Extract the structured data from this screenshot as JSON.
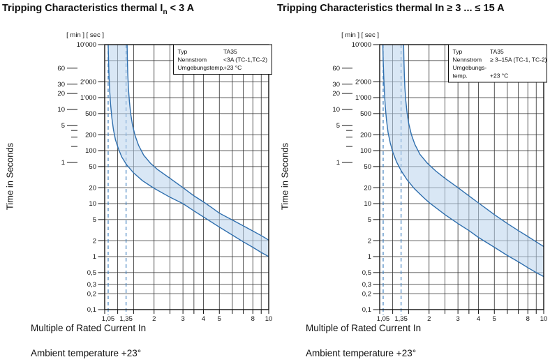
{
  "colors": {
    "curve": "#2f6fae",
    "band": "#b9d3ec",
    "dashed": "#4080c0",
    "grid": "#2d2d2d",
    "frame": "#111111",
    "text": "#111111"
  },
  "chart_data": [
    {
      "type": "line",
      "title": {
        "pre": "Tripping Characteristics thermal I",
        "sub": "n",
        "post": " < 3 A"
      },
      "unit_header": "[ min ] [ sec ]",
      "ylabel": "Time in Seconds",
      "xlabel": "Multiple of Rated Current In",
      "footnote": "Ambient temperature +23°",
      "x_scale": "log",
      "y_scale": "log",
      "grid": true,
      "x_range": [
        1,
        10
      ],
      "y_range_seconds": [
        0.1,
        10000
      ],
      "x_gridlines": [
        1,
        1.2,
        1.5,
        2,
        2.5,
        3,
        3.5,
        4,
        5,
        6,
        7,
        8,
        9,
        10
      ],
      "x_ticks": [
        {
          "v": 1.05,
          "label": "1,05",
          "accent": true
        },
        {
          "v": 1.35,
          "label": "1,35",
          "accent": true
        },
        {
          "v": 2,
          "label": "2"
        },
        {
          "v": 3,
          "label": "3"
        },
        {
          "v": 4,
          "label": "4"
        },
        {
          "v": 5,
          "label": "5"
        },
        {
          "v": 8,
          "label": "8"
        },
        {
          "v": 10,
          "label": "10"
        }
      ],
      "dashed_thresholds": [
        1.05,
        1.35
      ],
      "y_gridlines_sec": [
        {
          "v": 10000,
          "label": "10'000"
        },
        {
          "v": 5000,
          "label": ""
        },
        {
          "v": 2000,
          "label": "2'000"
        },
        {
          "v": 1000,
          "label": "1'000"
        },
        {
          "v": 500,
          "label": "500"
        },
        {
          "v": 200,
          "label": "200"
        },
        {
          "v": 100,
          "label": "100"
        },
        {
          "v": 50,
          "label": "50"
        },
        {
          "v": 20,
          "label": "20"
        },
        {
          "v": 10,
          "label": "10"
        },
        {
          "v": 5,
          "label": "5"
        },
        {
          "v": 2,
          "label": "2"
        },
        {
          "v": 1,
          "label": "1"
        },
        {
          "v": 0.5,
          "label": "0,5"
        },
        {
          "v": 0.3,
          "label": "0,3"
        },
        {
          "v": 0.2,
          "label": "0,2"
        },
        {
          "v": 0.1,
          "label": "0,1"
        }
      ],
      "y_ticks_min": [
        {
          "v": 60,
          "label": "60"
        },
        {
          "v": 30,
          "label": "30"
        },
        {
          "v": 20,
          "label": "20"
        },
        {
          "v": 10,
          "label": "10"
        },
        {
          "v": 5,
          "label": "5"
        },
        {
          "v": 4,
          "label": ""
        },
        {
          "v": 3,
          "label": ""
        },
        {
          "v": 2,
          "label": ""
        },
        {
          "v": 1,
          "label": "1"
        }
      ],
      "legend": {
        "rows": [
          [
            "Typ",
            "TA35"
          ],
          [
            "Nennstrom",
            "<3A (TC-1,TC-2)"
          ],
          [
            "Umgebungstemp.",
            "+23 °C"
          ]
        ]
      },
      "series": [
        {
          "name": "min-trip-time",
          "points": [
            [
              1.05,
              10000
            ],
            [
              1.055,
              5200
            ],
            [
              1.062,
              2700
            ],
            [
              1.072,
              1400
            ],
            [
              1.086,
              750
            ],
            [
              1.105,
              420
            ],
            [
              1.13,
              250
            ],
            [
              1.163,
              160
            ],
            [
              1.21,
              110
            ],
            [
              1.27,
              76
            ],
            [
              1.36,
              54
            ],
            [
              1.5,
              38
            ],
            [
              1.7,
              27
            ],
            [
              2,
              19.5
            ],
            [
              2.5,
              13.2
            ],
            [
              3,
              10
            ],
            [
              3.5,
              7.3
            ],
            [
              4,
              5.6
            ],
            [
              5,
              3.6
            ],
            [
              6,
              2.55
            ],
            [
              7,
              1.9
            ],
            [
              8,
              1.5
            ],
            [
              9,
              1.2
            ],
            [
              10,
              1.0
            ]
          ]
        },
        {
          "name": "max-trip-time",
          "points": [
            [
              1.37,
              10000
            ],
            [
              1.375,
              5200
            ],
            [
              1.383,
              2700
            ],
            [
              1.396,
              1500
            ],
            [
              1.415,
              850
            ],
            [
              1.44,
              500
            ],
            [
              1.475,
              310
            ],
            [
              1.53,
              195
            ],
            [
              1.61,
              125
            ],
            [
              1.73,
              82
            ],
            [
              1.9,
              58
            ],
            [
              2.1,
              44
            ],
            [
              2.5,
              30
            ],
            [
              3,
              20
            ],
            [
              3.5,
              14
            ],
            [
              4,
              10.8
            ],
            [
              4.5,
              8.4
            ],
            [
              5,
              6.6
            ],
            [
              6,
              4.9
            ],
            [
              7,
              3.8
            ],
            [
              8,
              3.05
            ],
            [
              9,
              2.5
            ],
            [
              10,
              2.05
            ]
          ]
        }
      ]
    },
    {
      "type": "line",
      "title": {
        "pre": "Tripping Characteristics thermal In ≥ 3 ... ≤ 15 A",
        "sub": "",
        "post": ""
      },
      "unit_header": "[ min ] [ sec ]",
      "ylabel": "Time in Seconds",
      "xlabel": "Multiple of Rated Current In",
      "footnote": "Ambient temperature +23°",
      "x_scale": "log",
      "y_scale": "log",
      "grid": true,
      "x_range": [
        1,
        10
      ],
      "y_range_seconds": [
        0.1,
        10000
      ],
      "x_gridlines": [
        1,
        1.2,
        1.5,
        2,
        2.5,
        3,
        3.5,
        4,
        5,
        6,
        7,
        8,
        9,
        10
      ],
      "x_ticks": [
        {
          "v": 1.05,
          "label": "1,05",
          "accent": true
        },
        {
          "v": 1.35,
          "label": "1,35",
          "accent": true
        },
        {
          "v": 2,
          "label": "2"
        },
        {
          "v": 3,
          "label": "3"
        },
        {
          "v": 4,
          "label": "4"
        },
        {
          "v": 5,
          "label": "5"
        },
        {
          "v": 8,
          "label": "8"
        },
        {
          "v": 10,
          "label": "10"
        }
      ],
      "dashed_thresholds": [
        1.05,
        1.35
      ],
      "y_gridlines_sec": [
        {
          "v": 10000,
          "label": "10'000"
        },
        {
          "v": 5000,
          "label": ""
        },
        {
          "v": 2000,
          "label": "2'000"
        },
        {
          "v": 1000,
          "label": "1'000"
        },
        {
          "v": 500,
          "label": "500"
        },
        {
          "v": 200,
          "label": "200"
        },
        {
          "v": 100,
          "label": "100"
        },
        {
          "v": 50,
          "label": "50"
        },
        {
          "v": 20,
          "label": "20"
        },
        {
          "v": 10,
          "label": "10"
        },
        {
          "v": 5,
          "label": "5"
        },
        {
          "v": 2,
          "label": "2"
        },
        {
          "v": 1,
          "label": "1"
        },
        {
          "v": 0.5,
          "label": "0,5"
        },
        {
          "v": 0.3,
          "label": "0,3"
        },
        {
          "v": 0.2,
          "label": "0,2"
        },
        {
          "v": 0.1,
          "label": "0,1"
        }
      ],
      "y_ticks_min": [
        {
          "v": 60,
          "label": "60"
        },
        {
          "v": 30,
          "label": "30"
        },
        {
          "v": 20,
          "label": "20"
        },
        {
          "v": 10,
          "label": "10"
        },
        {
          "v": 5,
          "label": "5"
        },
        {
          "v": 4,
          "label": ""
        },
        {
          "v": 3,
          "label": ""
        },
        {
          "v": 2,
          "label": ""
        },
        {
          "v": 1,
          "label": "1"
        }
      ],
      "legend": {
        "rows": [
          [
            "Typ",
            "TA35"
          ],
          [
            "Nennstrom",
            "≥ 3–15A (TC-1, TC-2)"
          ],
          [
            "Umgebungs-",
            ""
          ],
          [
            "temp.",
            "+23 °C"
          ]
        ]
      },
      "series": [
        {
          "name": "min-trip-time",
          "points": [
            [
              1.045,
              10000
            ],
            [
              1.05,
              5000
            ],
            [
              1.058,
              2500
            ],
            [
              1.068,
              1300
            ],
            [
              1.082,
              680
            ],
            [
              1.1,
              380
            ],
            [
              1.125,
              220
            ],
            [
              1.16,
              140
            ],
            [
              1.205,
              92
            ],
            [
              1.265,
              62
            ],
            [
              1.35,
              42
            ],
            [
              1.47,
              28
            ],
            [
              1.63,
              19
            ],
            [
              1.85,
              13
            ],
            [
              2,
              10.5
            ],
            [
              2.5,
              6.2
            ],
            [
              3,
              4.2
            ],
            [
              3.5,
              3.1
            ],
            [
              4,
              2.3
            ],
            [
              5,
              1.5
            ],
            [
              6,
              1.05
            ],
            [
              7,
              0.8
            ],
            [
              8,
              0.62
            ],
            [
              9,
              0.5
            ],
            [
              10,
              0.42
            ]
          ]
        },
        {
          "name": "max-trip-time",
          "points": [
            [
              1.4,
              10000
            ],
            [
              1.405,
              5200
            ],
            [
              1.413,
              2700
            ],
            [
              1.425,
              1500
            ],
            [
              1.443,
              880
            ],
            [
              1.468,
              520
            ],
            [
              1.505,
              320
            ],
            [
              1.56,
              200
            ],
            [
              1.64,
              130
            ],
            [
              1.76,
              85
            ],
            [
              1.95,
              58
            ],
            [
              2.2,
              41
            ],
            [
              2.5,
              30
            ],
            [
              3,
              20
            ],
            [
              3.5,
              14
            ],
            [
              4,
              10.3
            ],
            [
              4.5,
              7.9
            ],
            [
              5,
              6.2
            ],
            [
              6,
              4.2
            ],
            [
              7,
              3.1
            ],
            [
              8,
              2.4
            ],
            [
              9,
              1.9
            ],
            [
              10,
              1.55
            ]
          ]
        }
      ]
    }
  ]
}
